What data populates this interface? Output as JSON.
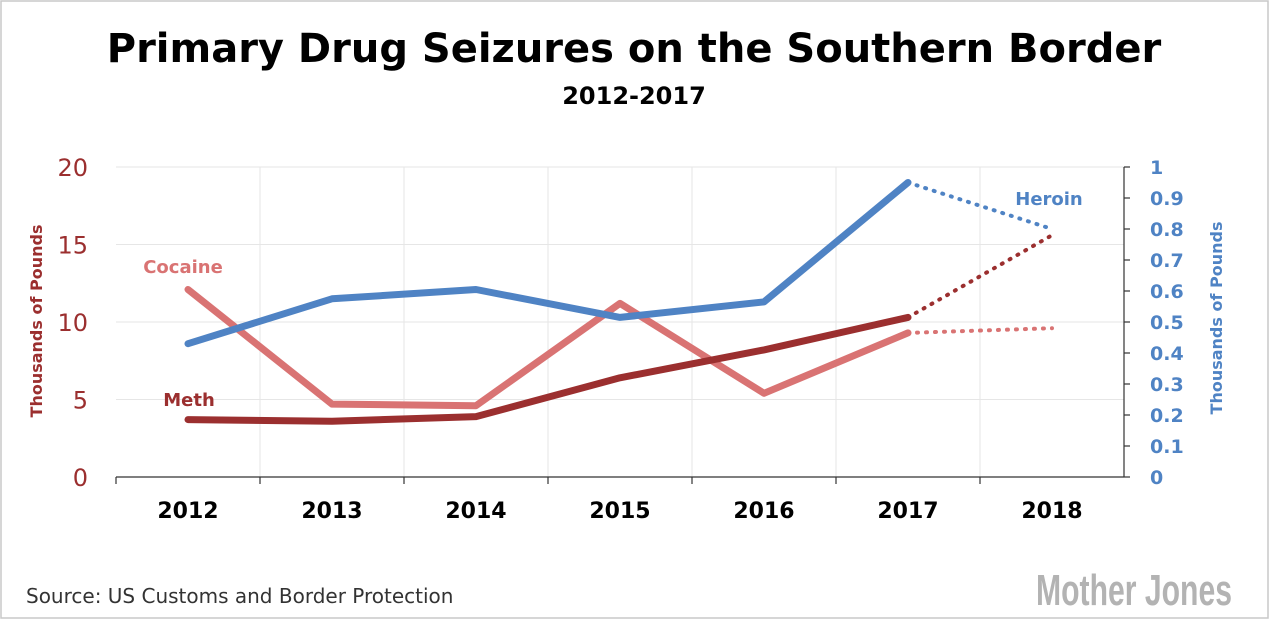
{
  "chart_data": {
    "type": "line",
    "title": "Primary Drug Seizures on the Southern Border",
    "subtitle": "2012-2017",
    "x": [
      2012,
      2013,
      2014,
      2015,
      2016,
      2017,
      2018
    ],
    "x_tick_labels": [
      "2012",
      "2013",
      "2014",
      "2015",
      "2016",
      "2017",
      "2018"
    ],
    "ylabel_left": "Thousands of Pounds",
    "ylabel_right": "Thousands of Pounds",
    "ylim_left": [
      0,
      20
    ],
    "ylim_right": [
      0,
      1
    ],
    "yticks_left": [
      "0",
      "5",
      "10",
      "15",
      "20"
    ],
    "yticks_right": [
      "0",
      "0.1",
      "0.2",
      "0.3",
      "0.4",
      "0.5",
      "0.6",
      "0.7",
      "0.8",
      "0.9",
      "1"
    ],
    "grid": true,
    "series": [
      {
        "name": "Cocaine",
        "axis": "left",
        "color": "#d97373",
        "x": [
          2012,
          2013,
          2014,
          2015,
          2016,
          2017
        ],
        "values": [
          12.1,
          4.7,
          4.6,
          11.2,
          5.4,
          9.3
        ],
        "projection": {
          "x": [
            2017,
            2018
          ],
          "values": [
            9.3,
            9.6
          ]
        }
      },
      {
        "name": "Meth",
        "axis": "left",
        "color": "#9b2f2f",
        "x": [
          2012,
          2013,
          2014,
          2015,
          2016,
          2017
        ],
        "values": [
          3.7,
          3.6,
          3.9,
          6.4,
          8.2,
          10.3
        ],
        "projection": {
          "x": [
            2017,
            2018
          ],
          "values": [
            10.3,
            15.6
          ]
        }
      },
      {
        "name": "Heroin",
        "axis": "right",
        "color": "#4f83c4",
        "x": [
          2012,
          2013,
          2014,
          2015,
          2016,
          2017
        ],
        "values": [
          0.43,
          0.575,
          0.605,
          0.515,
          0.565,
          0.95
        ],
        "projection": {
          "x": [
            2017,
            2018
          ],
          "values": [
            0.95,
            0.8
          ]
        }
      }
    ]
  },
  "source": "Source: US Customs and Border Protection",
  "logo": "Mother Jones",
  "colors": {
    "left_axis": "#9b2f2f",
    "right_axis": "#4f83c4"
  }
}
